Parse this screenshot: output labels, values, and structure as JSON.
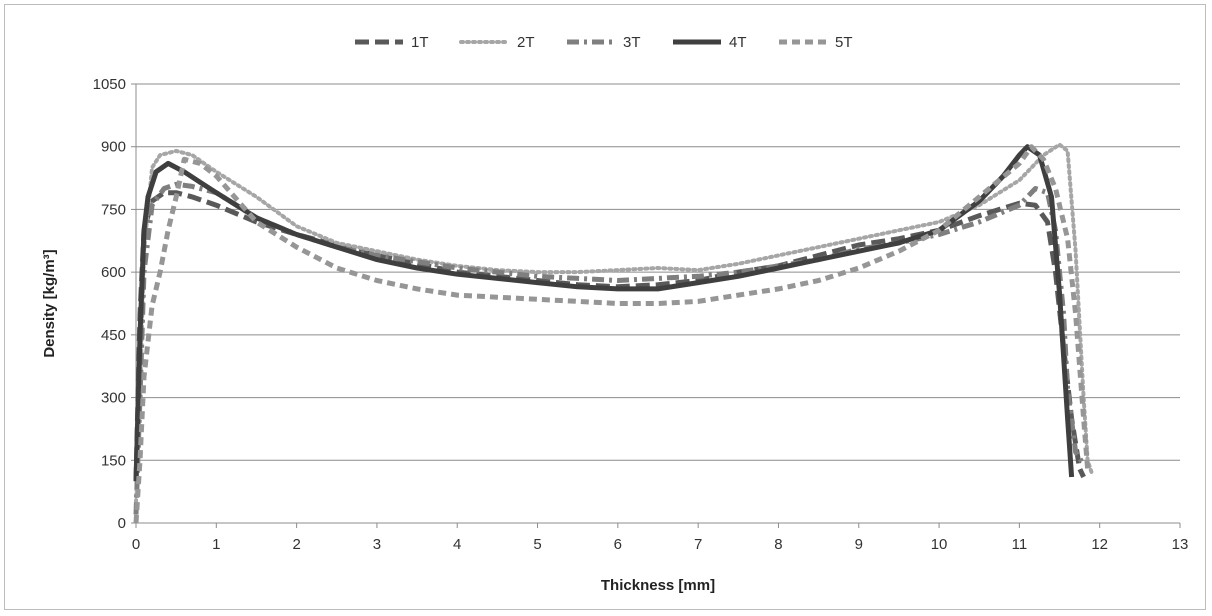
{
  "chart_data": {
    "type": "line",
    "title": "",
    "xlabel": "Thickness [mm]",
    "ylabel": "Density [kg/m³]",
    "xlim": [
      0,
      13
    ],
    "ylim": [
      0,
      1050
    ],
    "xticks": [
      0,
      1,
      2,
      3,
      4,
      5,
      6,
      7,
      8,
      9,
      10,
      11,
      12,
      13
    ],
    "yticks": [
      0,
      150,
      300,
      450,
      600,
      750,
      900,
      1050
    ],
    "grid": "horizontal",
    "legend_position": "top",
    "series": [
      {
        "name": "1T",
        "color": "#595959",
        "dash": "long-dash",
        "x": [
          0.0,
          0.05,
          0.1,
          0.2,
          0.35,
          0.5,
          0.7,
          1.0,
          1.5,
          2.0,
          2.5,
          3.0,
          3.5,
          4.0,
          4.5,
          5.0,
          5.5,
          6.0,
          6.5,
          7.0,
          7.5,
          8.0,
          8.5,
          9.0,
          9.5,
          10.0,
          10.5,
          11.0,
          11.2,
          11.35,
          11.45,
          11.55,
          11.65,
          11.75,
          11.8
        ],
        "y": [
          100,
          500,
          700,
          770,
          790,
          790,
          780,
          760,
          720,
          690,
          665,
          640,
          620,
          600,
          590,
          580,
          570,
          565,
          570,
          580,
          600,
          615,
          640,
          665,
          680,
          700,
          735,
          765,
          760,
          720,
          600,
          420,
          250,
          130,
          110
        ]
      },
      {
        "name": "2T",
        "color": "#a6a6a6",
        "dash": "dotted",
        "x": [
          0.0,
          0.05,
          0.1,
          0.2,
          0.3,
          0.5,
          0.7,
          1.0,
          1.5,
          2.0,
          2.5,
          3.0,
          3.5,
          4.0,
          4.5,
          5.0,
          5.5,
          6.0,
          6.5,
          7.0,
          7.5,
          8.0,
          8.5,
          9.0,
          9.5,
          10.0,
          10.5,
          11.0,
          11.3,
          11.5,
          11.6,
          11.7,
          11.8,
          11.85,
          11.9
        ],
        "y": [
          50,
          300,
          650,
          850,
          880,
          890,
          880,
          840,
          780,
          710,
          670,
          650,
          630,
          615,
          605,
          600,
          600,
          605,
          610,
          605,
          620,
          640,
          660,
          680,
          700,
          720,
          760,
          820,
          880,
          905,
          890,
          650,
          300,
          150,
          120
        ]
      },
      {
        "name": "3T",
        "color": "#7f7f7f",
        "dash": "dash-dot",
        "x": [
          0.0,
          0.05,
          0.1,
          0.2,
          0.35,
          0.5,
          0.7,
          1.0,
          1.5,
          2.0,
          2.5,
          3.0,
          3.5,
          4.0,
          4.5,
          5.0,
          5.5,
          6.0,
          6.5,
          7.0,
          7.5,
          8.0,
          8.5,
          9.0,
          9.5,
          10.0,
          10.5,
          11.0,
          11.2,
          11.35,
          11.45,
          11.55,
          11.6,
          11.7,
          11.8
        ],
        "y": [
          20,
          300,
          600,
          760,
          800,
          810,
          805,
          790,
          730,
          690,
          660,
          640,
          625,
          610,
          600,
          590,
          585,
          580,
          585,
          590,
          600,
          615,
          630,
          655,
          670,
          690,
          720,
          760,
          800,
          790,
          700,
          500,
          320,
          170,
          140
        ]
      },
      {
        "name": "4T",
        "color": "#3f3f3f",
        "dash": "solid",
        "x": [
          0.0,
          0.05,
          0.1,
          0.15,
          0.25,
          0.4,
          0.6,
          0.8,
          1.0,
          1.5,
          2.0,
          2.5,
          3.0,
          3.5,
          4.0,
          4.5,
          5.0,
          5.5,
          6.0,
          6.5,
          7.0,
          7.5,
          8.0,
          8.5,
          9.0,
          9.5,
          10.0,
          10.5,
          10.8,
          11.0,
          11.1,
          11.25,
          11.4,
          11.5,
          11.6,
          11.65
        ],
        "y": [
          100,
          450,
          700,
          780,
          840,
          860,
          840,
          815,
          790,
          730,
          690,
          660,
          630,
          610,
          595,
          585,
          575,
          565,
          560,
          560,
          575,
          590,
          610,
          630,
          650,
          670,
          700,
          770,
          830,
          880,
          900,
          880,
          780,
          550,
          250,
          110
        ]
      },
      {
        "name": "5T",
        "color": "#969696",
        "dash": "short-dash",
        "x": [
          0.0,
          0.05,
          0.1,
          0.2,
          0.3,
          0.4,
          0.5,
          0.6,
          0.8,
          1.0,
          1.5,
          2.0,
          2.5,
          3.0,
          3.5,
          4.0,
          4.5,
          5.0,
          5.5,
          6.0,
          6.5,
          7.0,
          7.5,
          8.0,
          8.5,
          9.0,
          9.5,
          10.0,
          10.5,
          11.0,
          11.15,
          11.3,
          11.45,
          11.6,
          11.7,
          11.8,
          11.85
        ],
        "y": [
          0,
          150,
          350,
          520,
          600,
          700,
          780,
          870,
          860,
          830,
          720,
          660,
          610,
          580,
          560,
          545,
          540,
          535,
          530,
          525,
          525,
          530,
          545,
          560,
          580,
          610,
          650,
          700,
          780,
          860,
          900,
          870,
          800,
          680,
          500,
          250,
          130
        ]
      }
    ]
  }
}
